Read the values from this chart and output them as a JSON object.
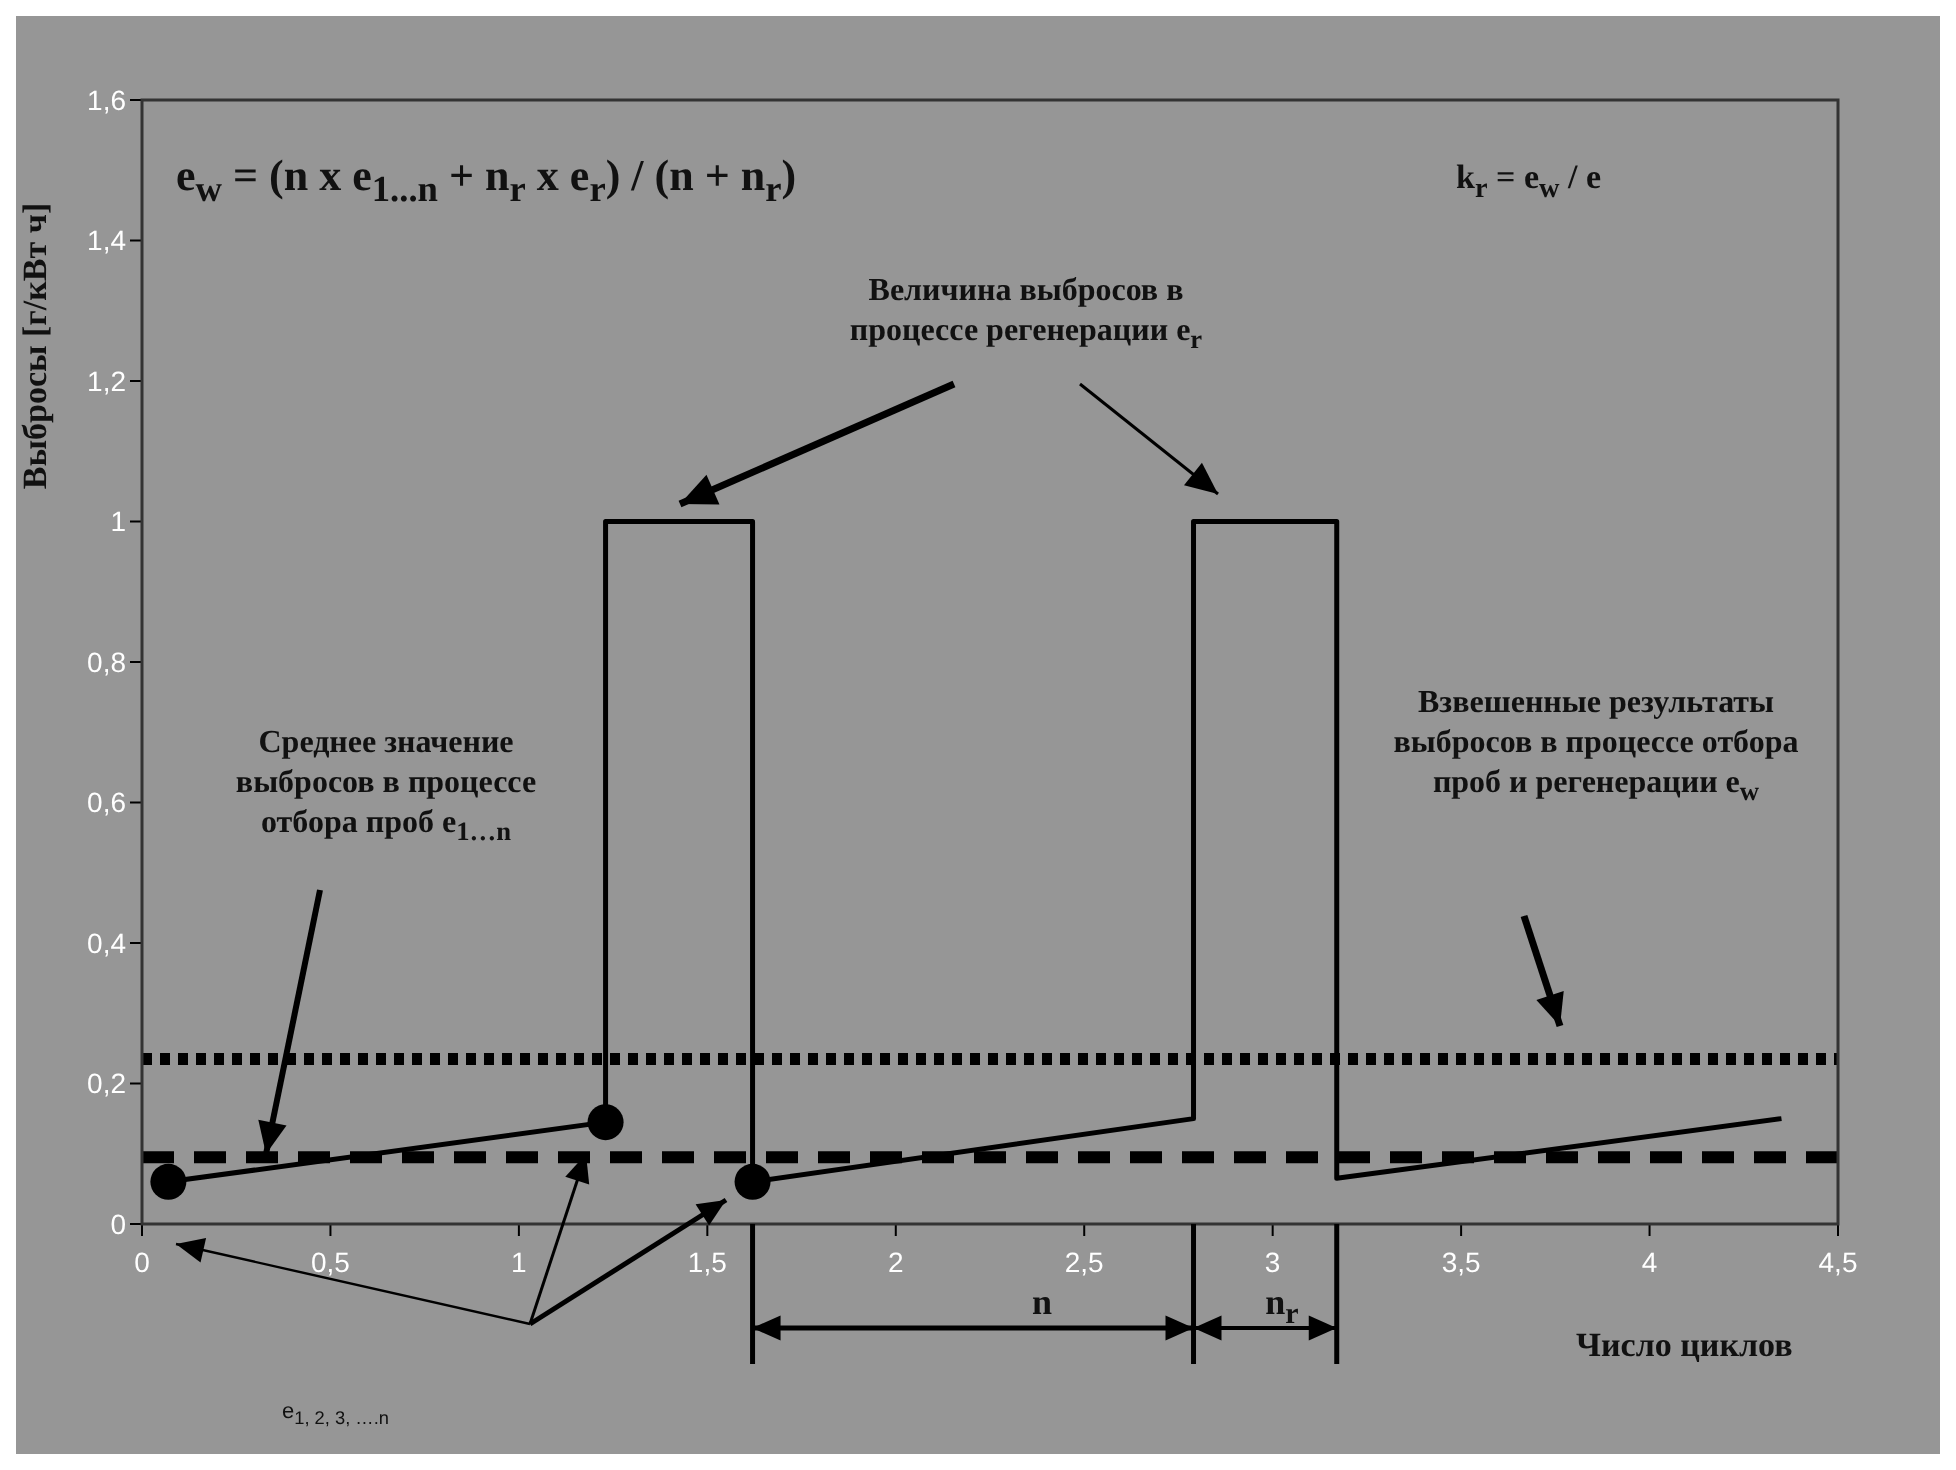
{
  "chart_data": {
    "type": "line",
    "xlabel": "Число циклов",
    "ylabel": "Выбросы [г/кВт ч]",
    "xlim": [
      0,
      4.5
    ],
    "xticks": [
      0,
      {
        "value": 0.5,
        "label": "0,5"
      },
      1,
      {
        "value": 1.5,
        "label": "1,5"
      },
      2,
      {
        "value": 2.5,
        "label": "2,5"
      },
      3,
      {
        "value": 3.5,
        "label": "3,5"
      },
      4,
      {
        "value": 4.5,
        "label": "4,5"
      }
    ],
    "ylim": [
      0,
      1.6
    ],
    "yticks": [
      0,
      {
        "value": 0.2,
        "label": "0,2"
      },
      {
        "value": 0.4,
        "label": "0,4"
      },
      {
        "value": 0.6,
        "label": "0,6"
      },
      {
        "value": 0.8,
        "label": "0,8"
      },
      1,
      {
        "value": 1.2,
        "label": "1,2"
      },
      {
        "value": 1.4,
        "label": "1,4"
      },
      {
        "value": 1.6,
        "label": "1,6"
      }
    ],
    "series": [
      {
        "type": "line",
        "color": "#000000",
        "marker": "none",
        "x": [
          0.07,
          1.23,
          1.23,
          1.62,
          1.62,
          2.79,
          2.79,
          3.17,
          3.17,
          4.35
        ],
        "values": [
          0.06,
          0.145,
          1,
          1,
          0.06,
          0.15,
          1,
          1,
          0.065,
          0.15
        ]
      },
      {
        "type": "scatter",
        "color": "#000000",
        "marker": "circle",
        "x": [
          0.07,
          1.23,
          1.62
        ],
        "values": [
          0.06,
          0.145,
          0.06
        ]
      }
    ],
    "ref_lines": [
      {
        "axis": "y",
        "value": 0.095,
        "color": "#000000",
        "line_style": "dashed"
      },
      {
        "axis": "y",
        "value": 0.235,
        "color": "#000000",
        "line_style": "dotted"
      }
    ],
    "annotations": [
      "e$_{w}$ = (n x e$_{1...n}$ + n$_{r}$ x e$_{r}$) / (n + n$_{r}$)",
      "k$_{r}$ = e$_{w}$ / e",
      "Величина выбросов в процессе регенерации e$_{r}$",
      "Среднее значение выбросов в процессе отбора проб e$_{1…n}$",
      "Взвешенные результаты выбросов в процессе отбора проб и регенерации e$_{w}$",
      "n",
      "n$_{r}$",
      "e$_{1, 2, 3, ….n}$"
    ]
  }
}
